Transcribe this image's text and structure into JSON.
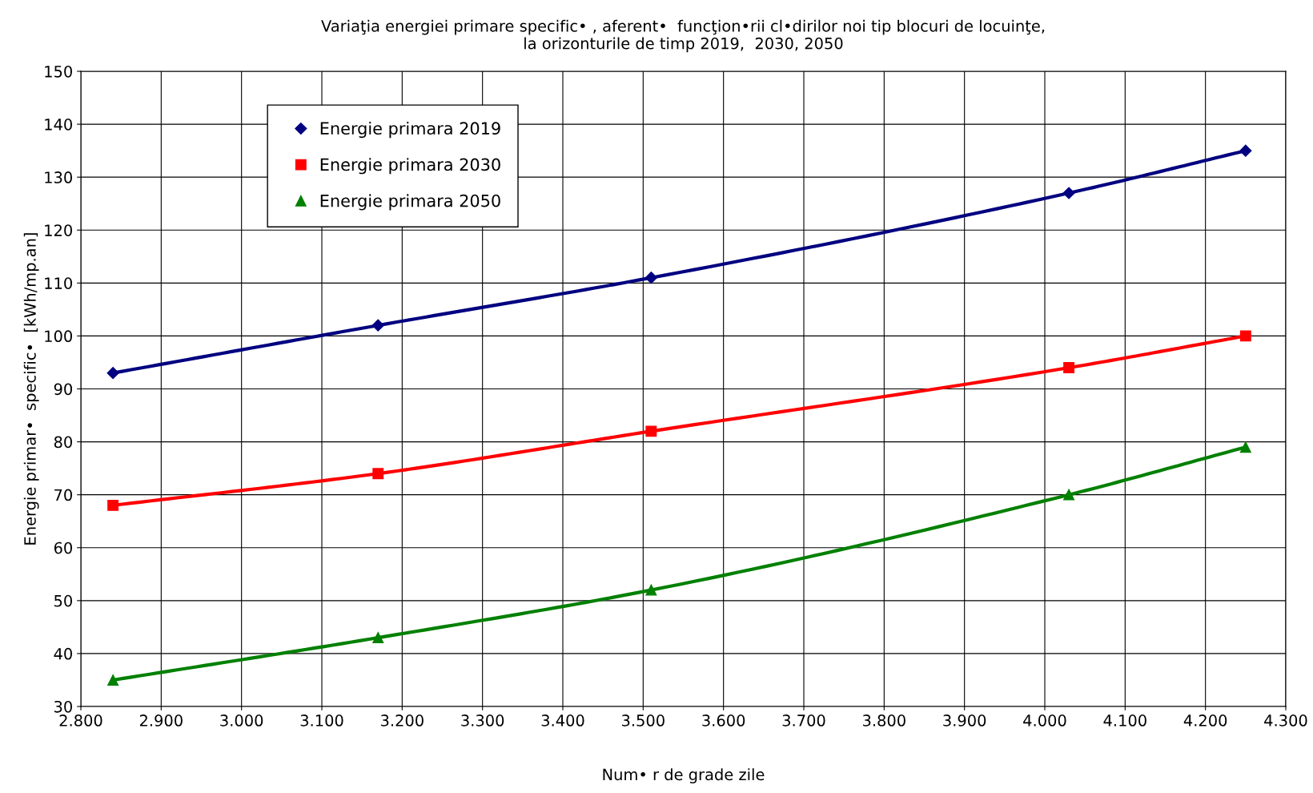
{
  "chart_data": {
    "type": "line",
    "title": "Variaţia energiei primare specific• , aferent•  funcţion•rii cl•dirilor noi tip blocuri de locuinţe,\nla orizonturile de timp 2019,  2030, 2050",
    "xlabel": "Num• r de grade zile",
    "ylabel": "Energie primar•  specific•  [kWh/mp.an]",
    "x": [
      2840,
      3170,
      3510,
      4030,
      4250
    ],
    "series": [
      {
        "name": "Energie primara 2019",
        "color": "#000080",
        "marker": "diamond",
        "values": [
          93,
          102,
          111,
          127,
          135
        ]
      },
      {
        "name": "Energie primara 2030",
        "color": "#ff0000",
        "marker": "square",
        "values": [
          68,
          74,
          82,
          94,
          100
        ]
      },
      {
        "name": "Energie primara 2050",
        "color": "#008000",
        "marker": "triangle",
        "values": [
          35,
          43,
          52,
          70,
          79
        ]
      }
    ],
    "xlim": [
      2800,
      4300
    ],
    "xticks": [
      {
        "value": 2800,
        "label": "2.800"
      },
      {
        "value": 2900,
        "label": "2.900"
      },
      {
        "value": 3000,
        "label": "3.000"
      },
      {
        "value": 3100,
        "label": "3.100"
      },
      {
        "value": 3200,
        "label": "3.200"
      },
      {
        "value": 3300,
        "label": "3.300"
      },
      {
        "value": 3400,
        "label": "3.400"
      },
      {
        "value": 3500,
        "label": "3.500"
      },
      {
        "value": 3600,
        "label": "3.600"
      },
      {
        "value": 3700,
        "label": "3.700"
      },
      {
        "value": 3800,
        "label": "3.800"
      },
      {
        "value": 3900,
        "label": "3.900"
      },
      {
        "value": 4000,
        "label": "4.000"
      },
      {
        "value": 4100,
        "label": "4.100"
      },
      {
        "value": 4200,
        "label": "4.200"
      },
      {
        "value": 4300,
        "label": "4.300"
      }
    ],
    "ylim": [
      30,
      150
    ],
    "yticks": [
      30,
      40,
      50,
      60,
      70,
      80,
      90,
      100,
      110,
      120,
      130,
      140,
      150
    ],
    "grid": true,
    "legend": "top left",
    "line_style": "solid"
  }
}
